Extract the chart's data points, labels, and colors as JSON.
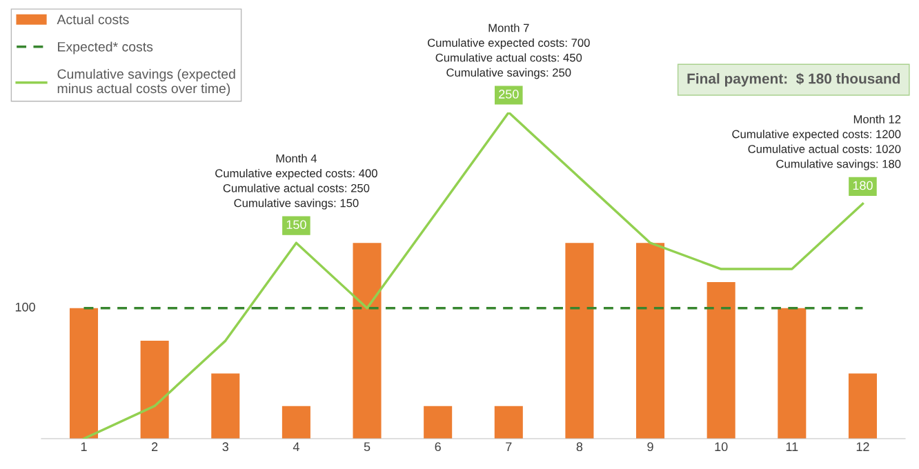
{
  "chart_data": {
    "type": "bar",
    "categories": [
      "1",
      "2",
      "3",
      "4",
      "5",
      "6",
      "7",
      "8",
      "9",
      "10",
      "11",
      "12"
    ],
    "series": [
      {
        "name": "Actual costs",
        "color": "#ed7d31",
        "values": [
          100,
          75,
          50,
          25,
          150,
          25,
          25,
          150,
          150,
          120,
          100,
          50
        ]
      },
      {
        "name": "Expected* costs",
        "type": "line",
        "line_style": "dashed",
        "color": "#38862f",
        "values": [
          100,
          100,
          100,
          100,
          100,
          100,
          100,
          100,
          100,
          100,
          100,
          100
        ]
      },
      {
        "name": "Cumulative savings (expected\nminus actual costs over time)",
        "type": "line",
        "line_style": "solid",
        "color": "#92d050",
        "values": [
          0,
          25,
          75,
          150,
          100,
          175,
          250,
          200,
          150,
          130,
          130,
          180
        ],
        "value_labels": [
          null,
          null,
          null,
          "150",
          null,
          null,
          "250",
          null,
          null,
          null,
          null,
          "180"
        ]
      }
    ],
    "tick_labels": "x",
    "grid": false,
    "legend": "top left",
    "marker": "none",
    "annotations": [
      {
        "text": "Month 4\nCumulative expected costs: 400\nCumulative actual costs: 250\nCumulative savings: 150",
        "x": "4",
        "y": 150
      },
      {
        "text": "Month 7\nCumulative expected costs: 700\nCumulative actual costs: 450\nCumulative savings: 250",
        "x": "7",
        "y": 250
      },
      {
        "text": "Month 12\nCumulative expected costs: 1200\nCumulative actual costs: 1020\nCumulative savings: 180",
        "x": "12",
        "y": 180
      },
      "Final payment:  $ 180 thousand",
      "100"
    ]
  }
}
